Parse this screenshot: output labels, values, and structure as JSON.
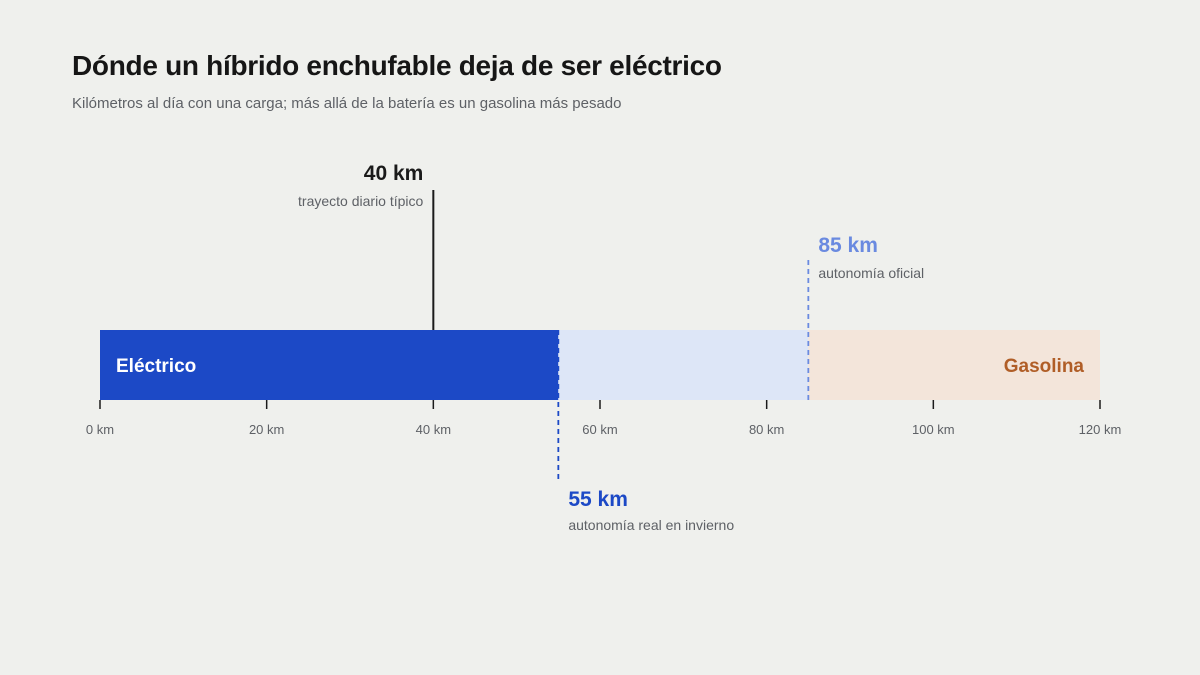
{
  "header": {
    "title": "Dónde un híbrido enchufable deja de ser eléctrico",
    "subtitle": "Kilómetros al día con una carga; más allá de la batería es un gasolina más pesado"
  },
  "chart_data": {
    "type": "bar",
    "title": "Dónde un híbrido enchufable deja de ser eléctrico",
    "subtitle": "Kilómetros al día con una carga; más allá de la batería es un gasolina más pesado",
    "xlim": [
      0,
      120
    ],
    "unit": "km",
    "ticks": [
      {
        "value": 0,
        "label": "0 km"
      },
      {
        "value": 20,
        "label": "20 km"
      },
      {
        "value": 40,
        "label": "40 km"
      },
      {
        "value": 60,
        "label": "60 km"
      },
      {
        "value": 80,
        "label": "80 km"
      },
      {
        "value": 100,
        "label": "100 km"
      },
      {
        "value": 120,
        "label": "120 km"
      }
    ],
    "segments": [
      {
        "key": "electrico",
        "from": 0,
        "to": 55,
        "color": "#1c49c6",
        "label": "Eléctrico",
        "label_color": "#ffffff",
        "label_align": "left"
      },
      {
        "key": "autonomia",
        "from": 55,
        "to": 85,
        "color": "#dde6f7",
        "label": "",
        "label_color": "",
        "label_align": "left"
      },
      {
        "key": "gasolina",
        "from": 85,
        "to": 120,
        "color": "#f3e5da",
        "label": "Gasolina",
        "label_color": "#b05e27",
        "label_align": "right"
      }
    ],
    "annotations": [
      {
        "key": "trayecto",
        "value": 40,
        "label": "40 km",
        "description": "trayecto diario típico",
        "color": "#1a1a1a",
        "style": "solid",
        "position": "above",
        "align": "right"
      },
      {
        "key": "oficial",
        "value": 85,
        "label": "85 km",
        "description": "autonomía oficial",
        "color": "#6a8ae0",
        "style": "dashed",
        "position": "above",
        "align": "left"
      },
      {
        "key": "invierno",
        "value": 55,
        "label": "55 km",
        "description": "autonomía real en invierno",
        "color": "#1c49c6",
        "style": "dashed",
        "position": "below",
        "align": "left"
      }
    ]
  }
}
